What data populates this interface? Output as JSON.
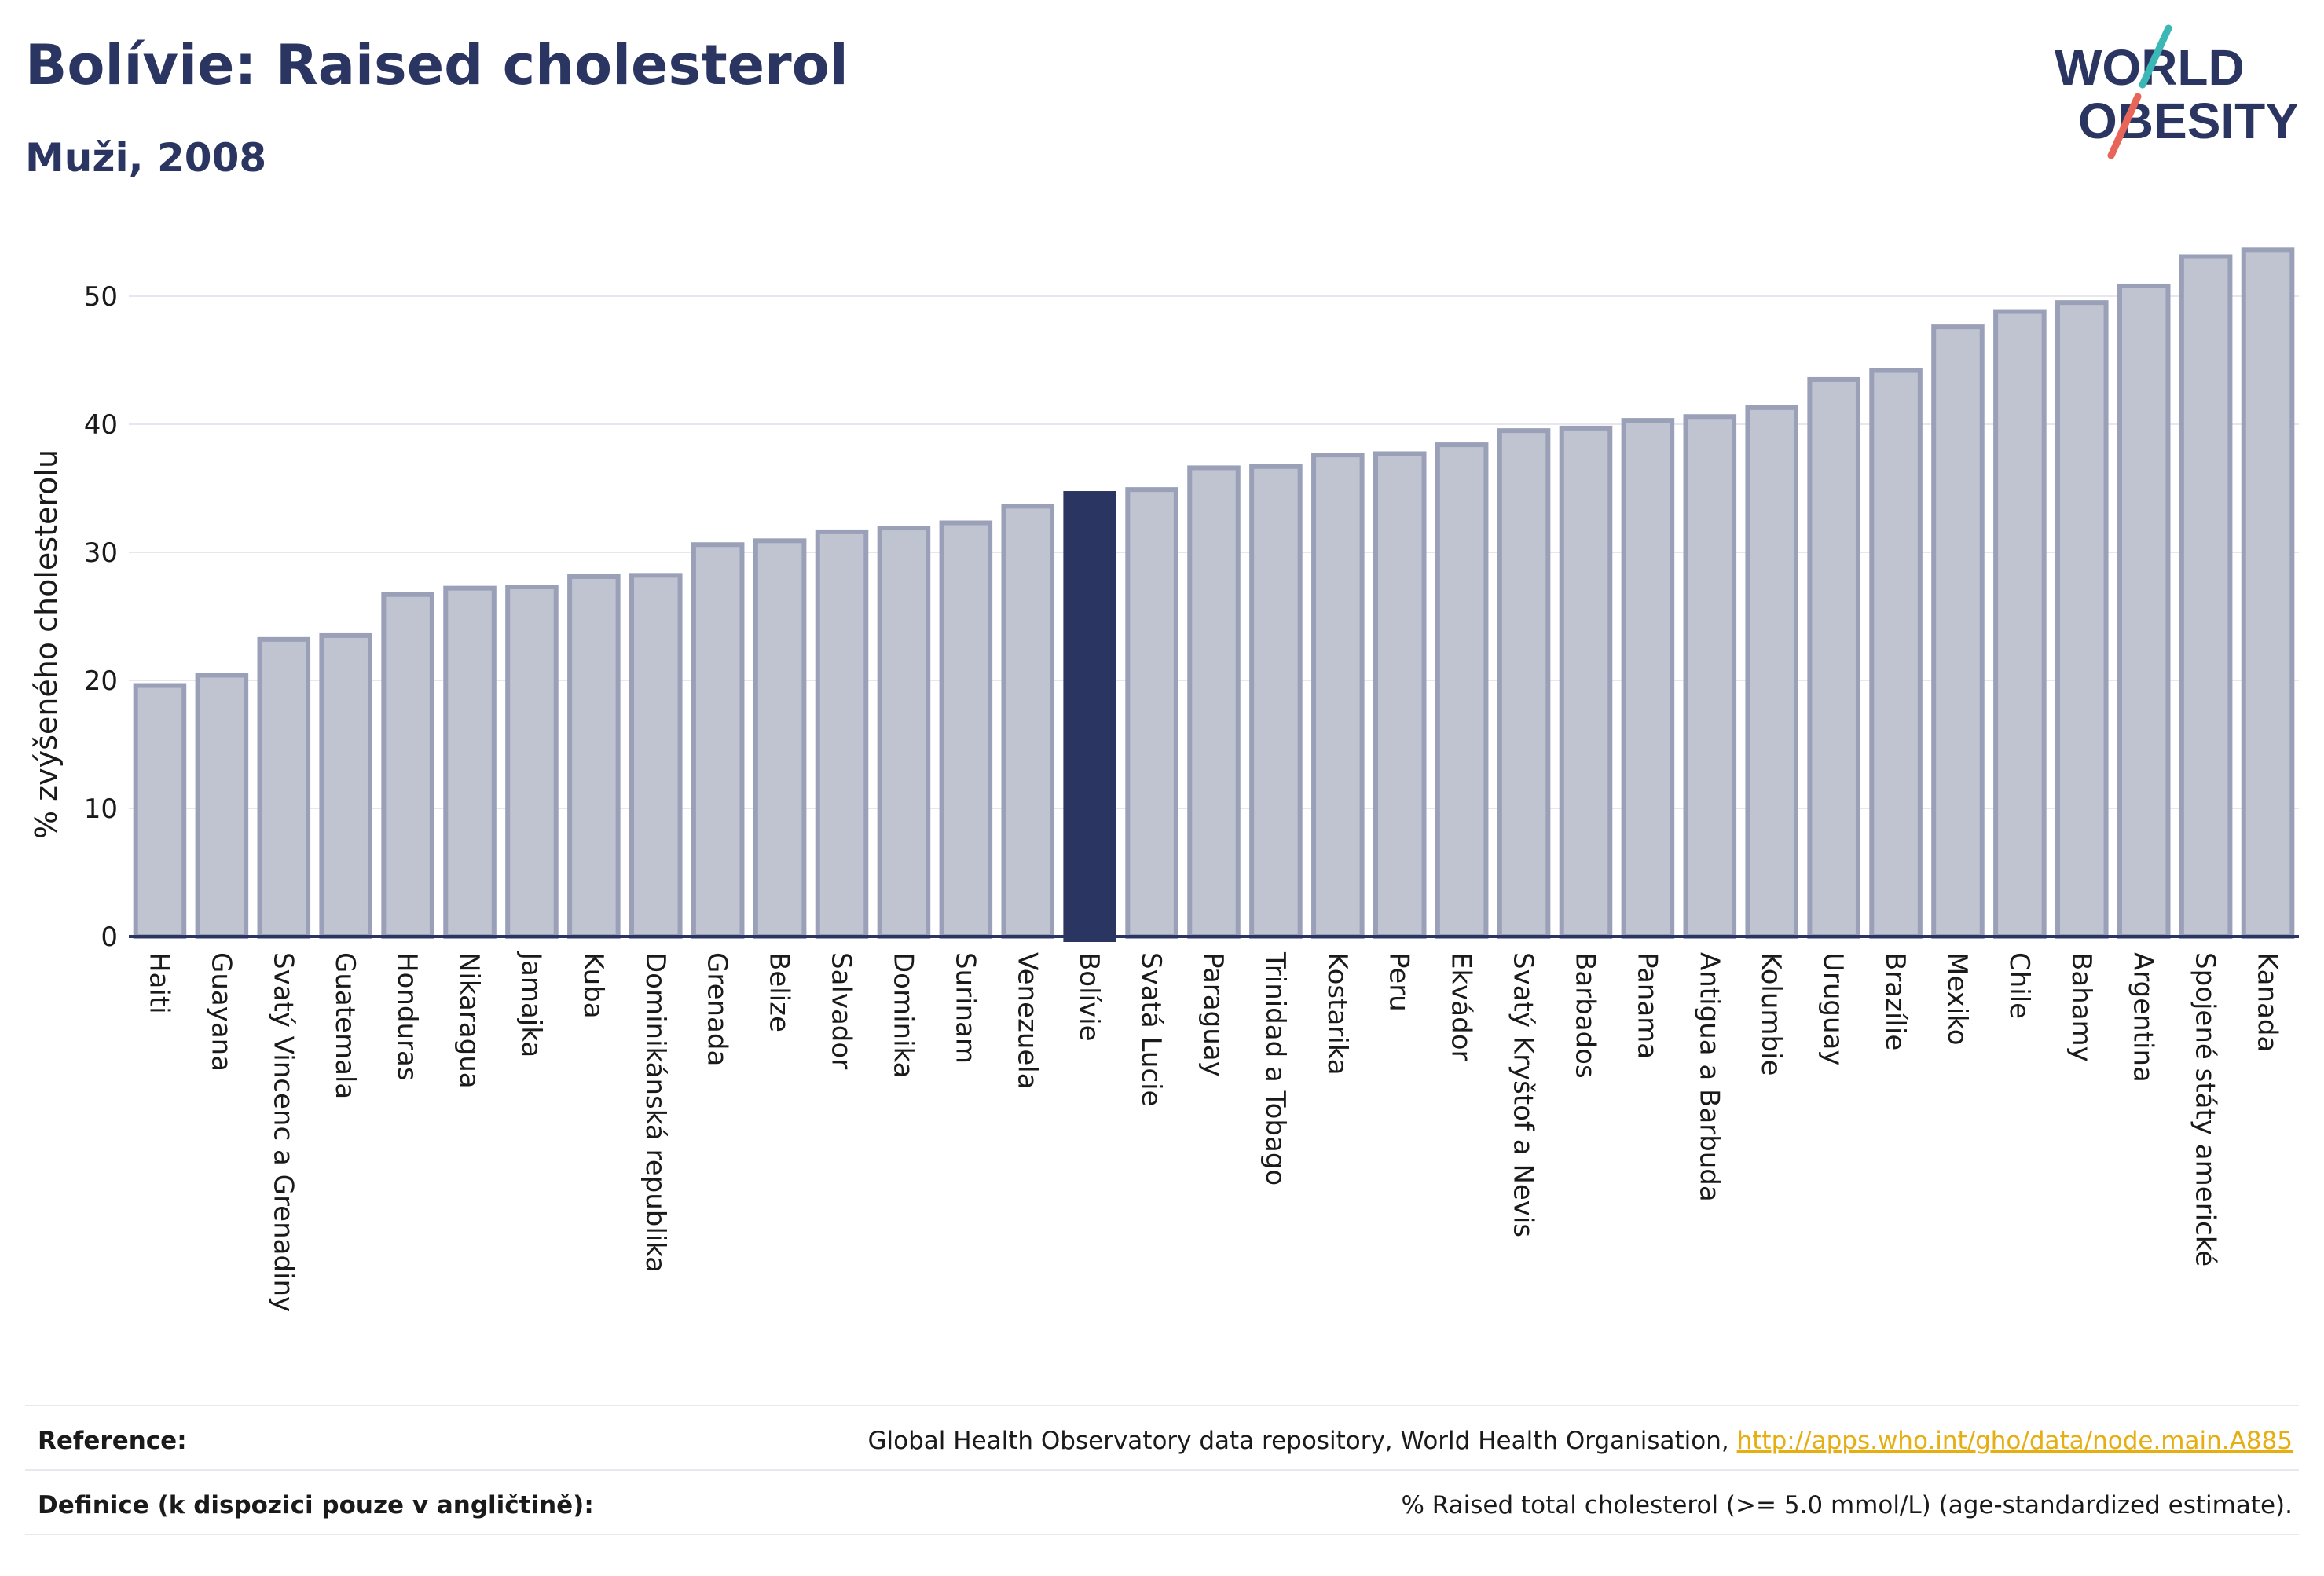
{
  "header": {
    "title": "Bolívie: Raised cholesterol",
    "subtitle": "Muži, 2008",
    "logo_line1": "WORLD",
    "logo_line2": "OBESITY"
  },
  "chart_data": {
    "type": "bar",
    "ylabel": "% zvýšeného cholesterolu",
    "ylim": [
      0,
      55
    ],
    "yticks": [
      0,
      10,
      20,
      30,
      40,
      50
    ],
    "highlight": "Bolívie",
    "colors": {
      "bar": "#c0c3d0",
      "bar_border": "#9aa0b8",
      "highlight": "#2b3561",
      "grid": "#e6e6ec",
      "axis": "#2b3561"
    },
    "categories": [
      "Haiti",
      "Guayana",
      "Svatý Vincenc a Grenadiny",
      "Guatemala",
      "Honduras",
      "Nikaragua",
      "Jamajka",
      "Kuba",
      "Dominikánská republika",
      "Grenada",
      "Belize",
      "Salvador",
      "Dominika",
      "Surinam",
      "Venezuela",
      "Bolívie",
      "Svatá Lucie",
      "Paraguay",
      "Trinidad a Tobago",
      "Kostarika",
      "Peru",
      "Ekvádor",
      "Svatý Kryštof a Nevis",
      "Barbados",
      "Panama",
      "Antigua a Barbuda",
      "Kolumbie",
      "Uruguay",
      "Brazílie",
      "Mexiko",
      "Chile",
      "Bahamy",
      "Argentina",
      "Spojené státy americké",
      "Kanada"
    ],
    "values": [
      19.6,
      20.4,
      23.2,
      23.5,
      26.7,
      27.2,
      27.3,
      28.1,
      28.2,
      30.6,
      30.9,
      31.6,
      31.9,
      32.3,
      33.6,
      34.6,
      34.9,
      36.6,
      36.7,
      37.6,
      37.7,
      38.4,
      39.5,
      39.7,
      40.3,
      40.6,
      41.3,
      43.5,
      44.2,
      47.6,
      48.8,
      49.5,
      50.8,
      53.1,
      53.6
    ]
  },
  "footer": {
    "reference_label": "Reference:",
    "reference_text": "Global Health Observatory data repository, World Health Organisation, ",
    "reference_link": "http://apps.who.int/gho/data/node.main.A885",
    "definition_label": "Definice (k dispozici pouze v angličtině):",
    "definition_text": "% Raised total cholesterol (>= 5.0 mmol/L) (age-standardized estimate)."
  }
}
